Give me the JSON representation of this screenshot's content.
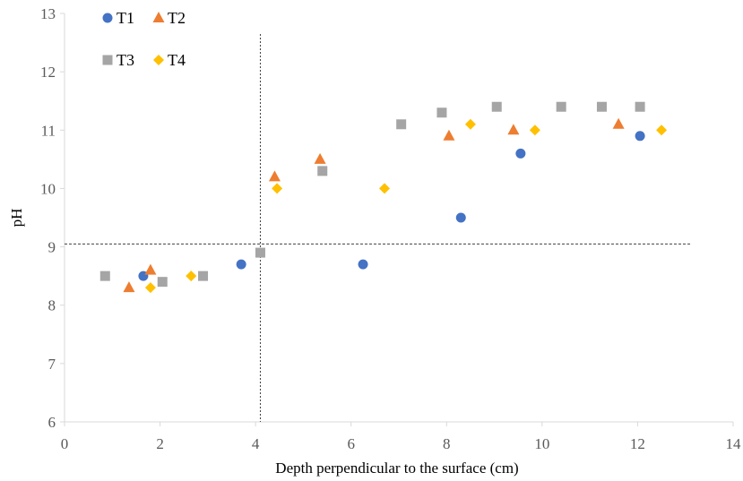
{
  "chart_data": {
    "type": "scatter",
    "xlabel": "Depth perpendicular to the surface (cm)",
    "ylabel": "pH",
    "xlim": [
      0,
      14
    ],
    "ylim": [
      6,
      13
    ],
    "xticks": [
      "0",
      "2",
      "4",
      "6",
      "8",
      "10",
      "12",
      "14"
    ],
    "yticks": [
      "6",
      "7",
      "8",
      "9",
      "10",
      "11",
      "12",
      "13"
    ],
    "grid": false,
    "legend_position": "top-left",
    "reference_lines": [
      {
        "orientation": "vertical",
        "value": 4.1
      },
      {
        "orientation": "horizontal",
        "value": 9.05
      }
    ],
    "series": [
      {
        "name": "T1",
        "marker": "circle",
        "color": "#4472C4",
        "points": [
          [
            1.65,
            8.5
          ],
          [
            3.7,
            8.7
          ],
          [
            6.25,
            8.7
          ],
          [
            8.3,
            9.5
          ],
          [
            9.55,
            10.6
          ],
          [
            12.05,
            10.9
          ]
        ]
      },
      {
        "name": "T2",
        "marker": "triangle",
        "color": "#ED7D31",
        "points": [
          [
            1.35,
            8.3
          ],
          [
            1.8,
            8.6
          ],
          [
            4.4,
            10.2
          ],
          [
            5.35,
            10.5
          ],
          [
            8.05,
            10.9
          ],
          [
            9.4,
            11.0
          ],
          [
            11.6,
            11.1
          ]
        ]
      },
      {
        "name": "T3",
        "marker": "square",
        "color": "#A5A5A5",
        "points": [
          [
            0.85,
            8.5
          ],
          [
            2.05,
            8.4
          ],
          [
            2.9,
            8.5
          ],
          [
            4.1,
            8.9
          ],
          [
            5.4,
            10.3
          ],
          [
            7.05,
            11.1
          ],
          [
            7.9,
            11.3
          ],
          [
            9.05,
            11.4
          ],
          [
            10.4,
            11.4
          ],
          [
            11.25,
            11.4
          ],
          [
            12.05,
            11.4
          ]
        ]
      },
      {
        "name": "T4",
        "marker": "diamond",
        "color": "#FFC000",
        "points": [
          [
            1.8,
            8.3
          ],
          [
            2.65,
            8.5
          ],
          [
            4.45,
            10.0
          ],
          [
            6.7,
            10.0
          ],
          [
            8.5,
            11.1
          ],
          [
            9.85,
            11.0
          ],
          [
            12.5,
            11.0
          ]
        ]
      }
    ]
  }
}
